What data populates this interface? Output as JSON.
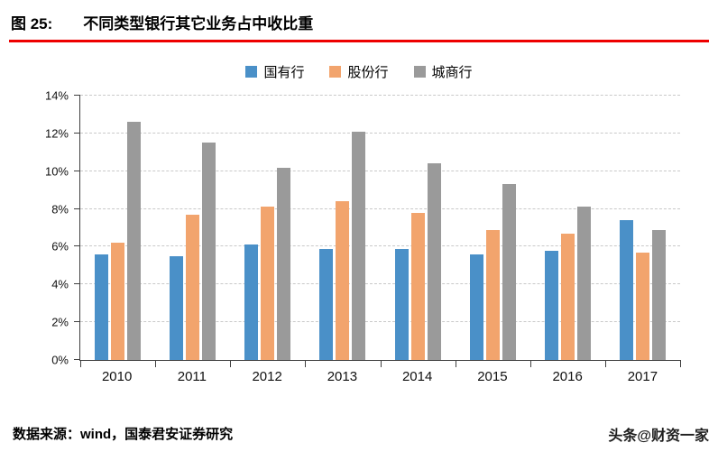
{
  "header": {
    "figure_label": "图 25:",
    "title": "不同类型银行其它业务占中收比重"
  },
  "footer": {
    "source": "数据来源：wind，国泰君安证券研究",
    "watermark": "头条@财资一家"
  },
  "colors": {
    "rule_red": "#ee0000",
    "axis": "#404040",
    "gridline": "#c9c9c9"
  },
  "chart_data": {
    "type": "bar",
    "title": "不同类型银行其它业务占中收比重",
    "categories": [
      "2010",
      "2011",
      "2012",
      "2013",
      "2014",
      "2015",
      "2016",
      "2017"
    ],
    "series": [
      {
        "name": "国有行",
        "color": "#4a90c8",
        "values": [
          5.6,
          5.5,
          6.1,
          5.9,
          5.9,
          5.6,
          5.8,
          7.4
        ]
      },
      {
        "name": "股份行",
        "color": "#f2a46d",
        "values": [
          6.2,
          7.7,
          8.1,
          8.4,
          7.8,
          6.9,
          6.7,
          5.7
        ]
      },
      {
        "name": "城商行",
        "color": "#9a9a9a",
        "values": [
          12.6,
          11.5,
          10.2,
          12.1,
          10.4,
          9.3,
          8.1,
          6.9
        ]
      }
    ],
    "xlabel": "",
    "ylabel": "",
    "ylim": [
      0,
      14
    ],
    "ytick_step": 2,
    "ytick_labels": [
      "0%",
      "2%",
      "4%",
      "6%",
      "8%",
      "10%",
      "12%",
      "14%"
    ],
    "grid": "horizontal-dashed",
    "legend_position": "top-center"
  }
}
